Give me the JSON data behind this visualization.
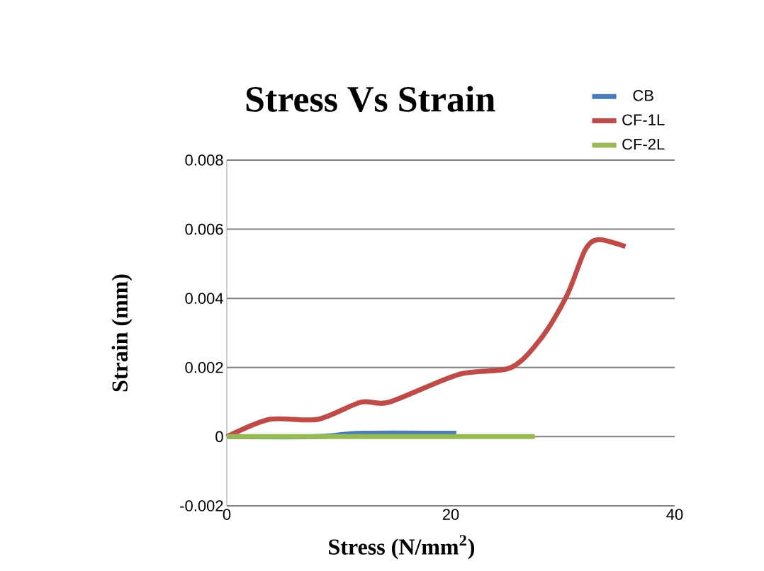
{
  "chart_data": {
    "type": "line",
    "title": "Stress Vs Strain",
    "xlabel": "Stress (N/mm$^{2}$)",
    "ylabel": "Strain (mm)",
    "xlim": [
      0,
      40
    ],
    "xticks": [
      0,
      20,
      40
    ],
    "ylim": [
      -0.002,
      0.008
    ],
    "yticks": [
      -0.002,
      0,
      0.002,
      0.004,
      0.006,
      0.008
    ],
    "grid": "y",
    "legend": "top right",
    "marker": "none",
    "series": [
      {
        "name": "CB",
        "color": "#4a7ebb",
        "x": [
          0,
          8,
          12,
          20.5
        ],
        "values": [
          0,
          0,
          0.0001,
          0.0001
        ]
      },
      {
        "name": "CF-1L",
        "color": "#be4b48",
        "x": [
          0,
          3.8,
          8.1,
          12,
          14.5,
          20.7,
          25.4,
          28.2,
          30.4,
          32,
          33.2,
          35.6
        ],
        "values": [
          0,
          0.0005,
          0.0005,
          0.001,
          0.001,
          0.0018,
          0.002,
          0.0029,
          0.0041,
          0.0054,
          0.0057,
          0.0055
        ]
      },
      {
        "name": "CF-2L",
        "color": "#98b954",
        "x": [
          0,
          27.5
        ],
        "values": [
          0,
          0
        ]
      }
    ]
  }
}
